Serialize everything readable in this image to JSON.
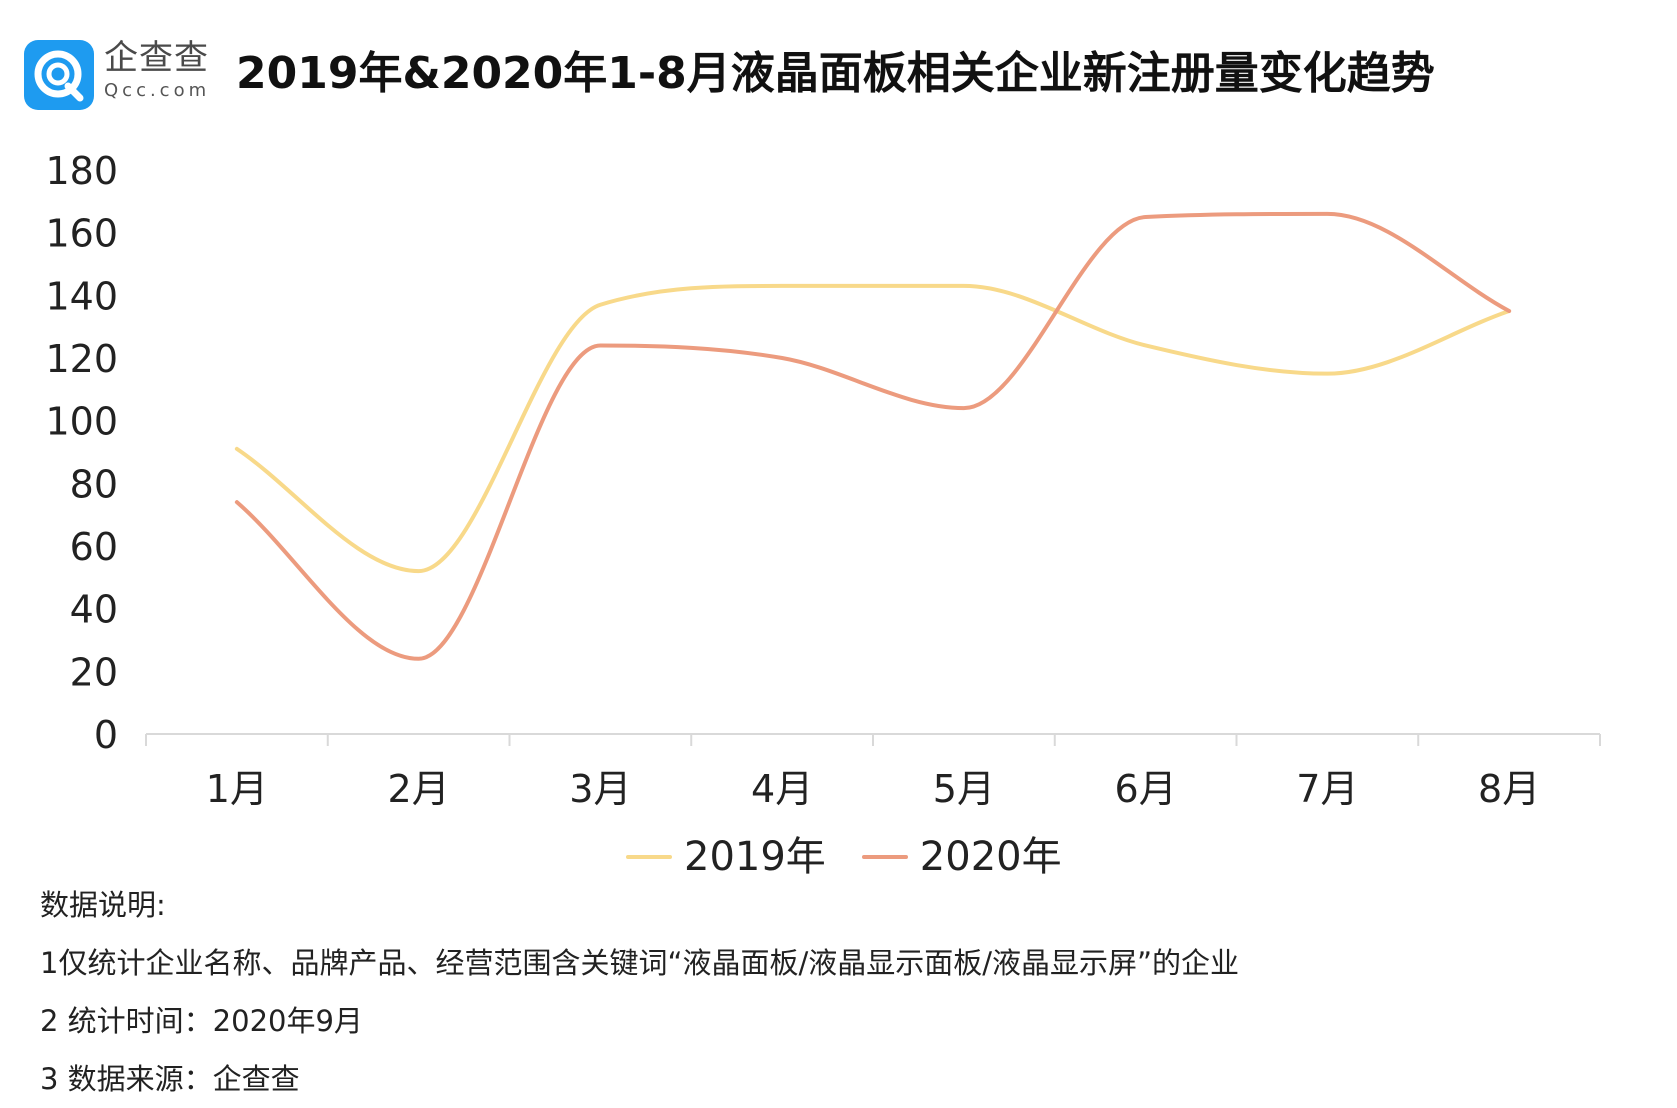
{
  "header": {
    "logo_cn": "企查查",
    "logo_en": "Qcc.com",
    "logo_icon": "qcc-q-logo-icon",
    "title": "2019年&2020年1-8月液晶面板相关企业新注册量变化趋势"
  },
  "colors": {
    "series_2019": "#F8D98A",
    "series_2020": "#EC9B7E",
    "logo_blue": "#1E9BF0",
    "axis": "#d9d9d9"
  },
  "chart_data": {
    "type": "line",
    "smooth": true,
    "categories": [
      "1月",
      "2月",
      "3月",
      "4月",
      "5月",
      "6月",
      "7月",
      "8月"
    ],
    "series": [
      {
        "name": "2019年",
        "values": [
          91,
          52,
          137,
          143,
          143,
          124,
          115,
          135
        ]
      },
      {
        "name": "2020年",
        "values": [
          74,
          24,
          124,
          120,
          104,
          165,
          166,
          135
        ]
      }
    ],
    "yticks": [
      "0",
      "20",
      "40",
      "60",
      "80",
      "100",
      "120",
      "140",
      "160",
      "180"
    ],
    "ylim": [
      0,
      180
    ],
    "grid": false,
    "legend_position": "bottom",
    "xlabel": "",
    "ylabel": ""
  },
  "notes": {
    "heading": "数据说明:",
    "line1": "1仅统计企业名称、品牌产品、经营范围含关键词“液晶面板/液晶显示面板/液晶显示屏”的企业",
    "line2": "2 统计时间：2020年9月",
    "line3": "3 数据来源：企查查"
  }
}
